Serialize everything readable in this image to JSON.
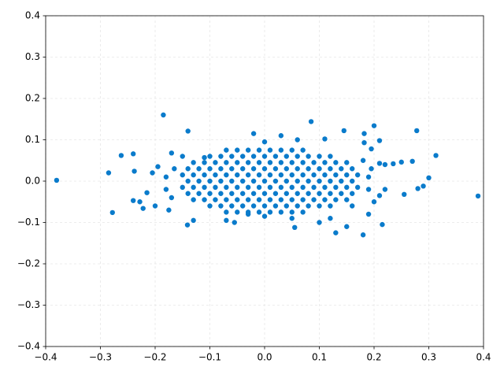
{
  "chart_data": {
    "type": "scatter",
    "series": [
      {
        "color": "#0a7bcb",
        "x": [
          -0.14,
          -0.12,
          -0.1,
          -0.08,
          -0.06,
          -0.04,
          -0.02,
          0,
          0.02,
          0.04,
          0.06,
          0.08,
          0.1,
          0.12,
          0.14,
          0.16,
          -0.15,
          -0.13,
          -0.11,
          -0.09,
          -0.07,
          -0.05,
          -0.03,
          -0.01,
          0.01,
          0.03,
          0.05,
          0.07,
          0.09,
          0.11,
          0.13,
          0.15,
          0.17,
          -0.15,
          -0.13,
          -0.11,
          -0.09,
          -0.07,
          -0.05,
          -0.03,
          -0.01,
          0.01,
          0.03,
          0.05,
          0.07,
          0.09,
          0.11,
          0.13,
          0.15,
          0.17,
          -0.14,
          -0.12,
          -0.1,
          -0.08,
          -0.06,
          -0.04,
          -0.02,
          0,
          0.02,
          0.04,
          0.06,
          0.08,
          0.1,
          0.12,
          0.14,
          0.16,
          -0.14,
          -0.12,
          -0.1,
          -0.08,
          -0.06,
          -0.04,
          -0.02,
          0,
          0.02,
          0.04,
          0.06,
          0.08,
          0.1,
          0.12,
          0.14,
          0.16,
          -0.13,
          -0.11,
          -0.09,
          -0.07,
          -0.05,
          -0.03,
          -0.01,
          0.01,
          0.03,
          0.05,
          0.07,
          0.09,
          0.11,
          0.13,
          0.15,
          -0.13,
          -0.11,
          -0.09,
          -0.07,
          -0.05,
          -0.03,
          -0.01,
          0.01,
          0.03,
          0.05,
          0.07,
          0.09,
          0.11,
          0.13,
          0.15,
          -0.1,
          -0.08,
          -0.06,
          -0.04,
          -0.02,
          0,
          0.02,
          0.04,
          0.06,
          0.08,
          0.1,
          0.12,
          -0.1,
          -0.08,
          -0.06,
          -0.04,
          -0.02,
          0,
          0.02,
          0.04,
          0.06,
          0.08,
          0.1,
          0.12,
          -0.07,
          -0.05,
          -0.03,
          -0.01,
          0.01,
          0.03,
          0.05,
          0.07,
          -0.07,
          -0.05,
          -0.03,
          -0.01,
          0.01,
          0.03,
          0.05,
          0.07,
          -0.38,
          -0.285,
          -0.278,
          -0.262,
          -0.24,
          -0.238,
          -0.185,
          -0.14,
          -0.141,
          0.085,
          0.2,
          0.278,
          0.313,
          0.39,
          0.18,
          0.055,
          0.13,
          0.215,
          0.27,
          0.3,
          0.29,
          0.28,
          0.255,
          0.25,
          0.22,
          0.235,
          0.21,
          0.195,
          0.182,
          0.182,
          0.195,
          0.21,
          0.145,
          0.11,
          -0.228,
          -0.222,
          -0.24,
          -0.2,
          -0.215,
          -0.205,
          -0.195,
          -0.17,
          -0.175,
          -0.15,
          -0.13,
          -0.11,
          -0.07,
          -0.055,
          -0.02,
          0.03,
          0,
          0.06,
          0.1,
          0.12,
          0.15,
          0.19,
          0.16,
          0.05,
          -0.03,
          0,
          -0.18,
          -0.18,
          -0.17,
          -0.165,
          0.19,
          0.19,
          0.2,
          0.18,
          0.21,
          0.22
        ],
        "values": [
          0,
          0,
          0,
          0,
          0,
          0,
          0,
          0,
          0,
          0,
          0,
          0,
          0,
          0,
          0,
          0,
          0.015,
          0.015,
          0.015,
          0.015,
          0.015,
          0.015,
          0.015,
          0.015,
          0.015,
          0.015,
          0.015,
          0.015,
          0.015,
          0.015,
          0.015,
          0.015,
          0.015,
          -0.015,
          -0.015,
          -0.015,
          -0.015,
          -0.015,
          -0.015,
          -0.015,
          -0.015,
          -0.015,
          -0.015,
          -0.015,
          -0.015,
          -0.015,
          -0.015,
          -0.015,
          -0.015,
          -0.015,
          0.03,
          0.03,
          0.03,
          0.03,
          0.03,
          0.03,
          0.03,
          0.03,
          0.03,
          0.03,
          0.03,
          0.03,
          0.03,
          0.03,
          0.03,
          0.03,
          -0.03,
          -0.03,
          -0.03,
          -0.03,
          -0.03,
          -0.03,
          -0.03,
          -0.03,
          -0.03,
          -0.03,
          -0.03,
          -0.03,
          -0.03,
          -0.03,
          -0.03,
          -0.03,
          0.045,
          0.045,
          0.045,
          0.045,
          0.045,
          0.045,
          0.045,
          0.045,
          0.045,
          0.045,
          0.045,
          0.045,
          0.045,
          0.045,
          0.045,
          -0.045,
          -0.045,
          -0.045,
          -0.045,
          -0.045,
          -0.045,
          -0.045,
          -0.045,
          -0.045,
          -0.045,
          -0.045,
          -0.045,
          -0.045,
          -0.045,
          -0.045,
          0.06,
          0.06,
          0.06,
          0.06,
          0.06,
          0.06,
          0.06,
          0.06,
          0.06,
          0.06,
          0.06,
          0.06,
          -0.06,
          -0.06,
          -0.06,
          -0.06,
          -0.06,
          -0.06,
          -0.06,
          -0.06,
          -0.06,
          -0.06,
          -0.06,
          -0.06,
          0.075,
          0.075,
          0.075,
          0.075,
          0.075,
          0.075,
          0.075,
          0.075,
          -0.075,
          -0.075,
          -0.075,
          -0.075,
          -0.075,
          -0.075,
          -0.075,
          -0.075,
          0.002,
          0.02,
          -0.076,
          0.062,
          0.066,
          0.024,
          0.16,
          0.121,
          -0.106,
          0.144,
          0.134,
          0.122,
          0.062,
          -0.036,
          -0.13,
          -0.112,
          -0.125,
          -0.105,
          0.048,
          0.008,
          -0.012,
          -0.018,
          -0.032,
          0.046,
          0.04,
          0.042,
          0.043,
          0.03,
          0.115,
          0.093,
          0.078,
          0.098,
          0.122,
          0.102,
          -0.05,
          -0.066,
          -0.047,
          -0.06,
          -0.028,
          0.02,
          0.035,
          0.068,
          -0.07,
          0.06,
          -0.095,
          0.057,
          -0.095,
          -0.1,
          0.115,
          0.11,
          0.095,
          0.1,
          -0.1,
          -0.09,
          -0.11,
          -0.08,
          -0.06,
          -0.09,
          -0.08,
          -0.085,
          -0.02,
          0.01,
          -0.04,
          0.03,
          -0.02,
          0.01,
          -0.05,
          0.05,
          -0.035,
          -0.02
        ]
      }
    ],
    "xlim": [
      -0.4,
      0.4
    ],
    "ylim": [
      -0.4,
      0.4
    ],
    "xticks": [
      {
        "value": -0.4,
        "label": "−0.4"
      },
      {
        "value": -0.3,
        "label": "−0.3"
      },
      {
        "value": -0.2,
        "label": "−0.2"
      },
      {
        "value": -0.1,
        "label": "−0.1"
      },
      {
        "value": 0,
        "label": "0.0"
      },
      0.1,
      0.2,
      0.3,
      0.4
    ],
    "yticks": [
      {
        "value": -0.4,
        "label": "−0.4"
      },
      {
        "value": -0.3,
        "label": "−0.3"
      },
      {
        "value": -0.2,
        "label": "−0.2"
      },
      {
        "value": -0.1,
        "label": "−0.1"
      },
      {
        "value": 0,
        "label": "0.0"
      },
      0.1,
      0.2,
      0.3,
      0.4
    ],
    "grid": true
  }
}
